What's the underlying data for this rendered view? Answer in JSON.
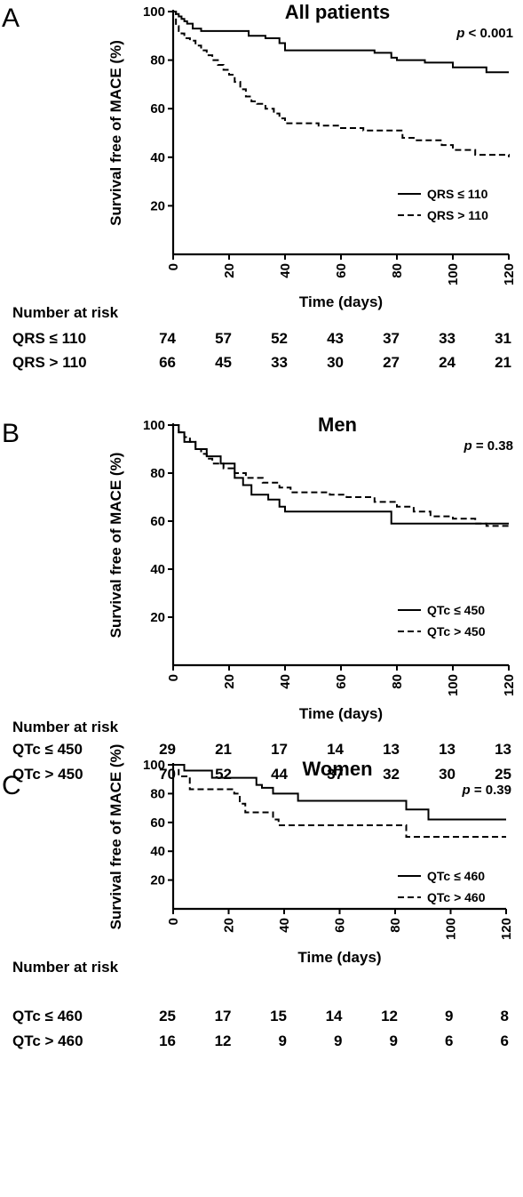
{
  "chart_data": [
    {
      "type": "line",
      "panel_letter": "A",
      "title": "All patients",
      "p_value": "< 0.001",
      "xlabel": "Time (days)",
      "ylabel": "Survival free of MACE (%)",
      "xlim": [
        0,
        120
      ],
      "ylim": [
        0,
        100
      ],
      "xticks": [
        0,
        20,
        40,
        60,
        80,
        100,
        120
      ],
      "yticks": [
        20,
        40,
        60,
        80,
        100
      ],
      "grid": false,
      "legend_position": "bottom-right",
      "series": [
        {
          "name": "QRS ≤ 110",
          "style": "solid",
          "x": [
            0,
            1,
            2,
            3,
            4,
            5,
            7,
            10,
            15,
            27,
            33,
            38,
            40,
            72,
            78,
            80,
            90,
            100,
            112,
            120
          ],
          "y": [
            100,
            99,
            98,
            97,
            96,
            95,
            93,
            92,
            92,
            90,
            89,
            87,
            84,
            83,
            81,
            80,
            79,
            77,
            75,
            75
          ]
        },
        {
          "name": "QRS > 110",
          "style": "dashed",
          "x": [
            0,
            1,
            2,
            3,
            4,
            6,
            8,
            10,
            12,
            14,
            16,
            18,
            20,
            22,
            24,
            26,
            28,
            30,
            33,
            36,
            38,
            40,
            46,
            52,
            60,
            68,
            82,
            86,
            96,
            100,
            108,
            120
          ],
          "y": [
            100,
            94,
            92,
            91,
            89,
            88,
            86,
            84,
            82,
            80,
            78,
            76,
            74,
            71,
            68,
            65,
            63,
            62,
            60,
            58,
            56,
            54,
            54,
            53,
            52,
            51,
            48,
            47,
            45,
            43,
            41,
            40
          ]
        }
      ],
      "risk_header": "Number at risk",
      "risk_table": [
        {
          "label": "QRS ≤ 110",
          "values": [
            74,
            57,
            52,
            43,
            37,
            33,
            31
          ]
        },
        {
          "label": "QRS > 110",
          "values": [
            66,
            45,
            33,
            30,
            27,
            24,
            21
          ]
        }
      ]
    },
    {
      "type": "line",
      "panel_letter": "B",
      "title": "Men",
      "p_value": "= 0.38",
      "xlabel": "Time (days)",
      "ylabel": "Survival free of MACE (%)",
      "xlim": [
        0,
        120
      ],
      "ylim": [
        0,
        100
      ],
      "xticks": [
        0,
        20,
        40,
        60,
        80,
        100,
        120
      ],
      "yticks": [
        20,
        40,
        60,
        80,
        100
      ],
      "grid": false,
      "legend_position": "bottom-right",
      "series": [
        {
          "name": "QTc ≤ 450",
          "style": "solid",
          "x": [
            0,
            2,
            4,
            8,
            12,
            17,
            22,
            25,
            28,
            34,
            38,
            40,
            78,
            110,
            120
          ],
          "y": [
            100,
            97,
            93,
            90,
            87,
            84,
            78,
            75,
            71,
            69,
            66,
            64,
            59,
            59,
            59
          ]
        },
        {
          "name": "QTc > 450",
          "style": "dashed",
          "x": [
            0,
            2,
            4,
            6,
            8,
            10,
            12,
            14,
            18,
            22,
            26,
            32,
            38,
            42,
            56,
            62,
            72,
            80,
            86,
            92,
            100,
            108,
            112,
            120
          ],
          "y": [
            100,
            97,
            95,
            93,
            90,
            88,
            86,
            84,
            82,
            80,
            78,
            76,
            74,
            72,
            71,
            70,
            68,
            66,
            64,
            62,
            61,
            59,
            58,
            58
          ]
        }
      ],
      "risk_header": "Number at risk",
      "risk_table": [
        {
          "label": "QTc ≤ 450",
          "values": [
            29,
            21,
            17,
            14,
            13,
            13,
            13
          ]
        },
        {
          "label": "QTc > 450",
          "values": [
            70,
            52,
            44,
            37,
            32,
            30,
            25
          ]
        }
      ]
    },
    {
      "type": "line",
      "panel_letter": "C",
      "title": "Women",
      "p_value": "= 0.39",
      "xlabel": "Time (days)",
      "ylabel": "Survival free of MACE (%)",
      "xlim": [
        0,
        120
      ],
      "ylim": [
        0,
        100
      ],
      "xticks": [
        0,
        20,
        40,
        60,
        80,
        100,
        120
      ],
      "yticks": [
        20,
        40,
        60,
        80,
        100
      ],
      "grid": false,
      "legend_position": "bottom-right",
      "series": [
        {
          "name": "QTc ≤ 460",
          "style": "solid",
          "x": [
            0,
            4,
            14,
            30,
            32,
            36,
            45,
            84,
            92,
            120
          ],
          "y": [
            100,
            96,
            91,
            86,
            84,
            80,
            75,
            69,
            62,
            62
          ]
        },
        {
          "name": "QTc > 460",
          "style": "dashed",
          "x": [
            0,
            2,
            6,
            22,
            24,
            26,
            36,
            38,
            84,
            120
          ],
          "y": [
            100,
            92,
            83,
            80,
            73,
            67,
            62,
            58,
            50,
            50
          ]
        }
      ],
      "risk_header": "Number at risk",
      "risk_table": [
        {
          "label": "QTc ≤ 460",
          "values": [
            25,
            17,
            15,
            14,
            12,
            9,
            8
          ]
        },
        {
          "label": "QTc > 460",
          "values": [
            16,
            12,
            9,
            9,
            9,
            6,
            6
          ]
        }
      ]
    }
  ]
}
